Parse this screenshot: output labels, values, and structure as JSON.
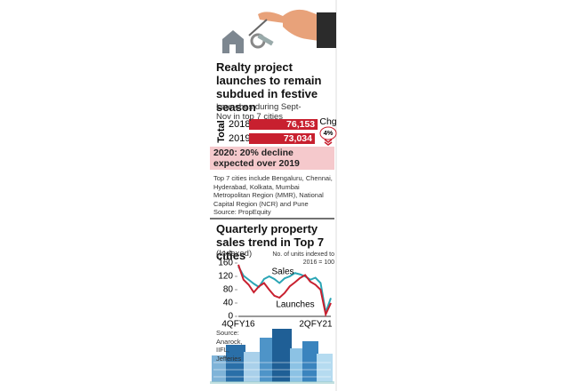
{
  "chart_data": [
    {
      "type": "bar",
      "title": "Realty project launches to remain subdued in festive season",
      "subtitle": "Launches during Sept-Nov in top 7 cities",
      "y_label": "Total",
      "categories": [
        "2018",
        "2019"
      ],
      "values": [
        76153,
        73034
      ],
      "value_labels": [
        "76,153",
        "73,034"
      ],
      "color": "#c8202f",
      "xlim": [
        0,
        77000
      ],
      "annotations": [
        "Chg",
        "4%",
        "2020: 20% decline expected over 2019",
        "Top 7 cities include Bengaluru, Chennai, Hyderabad, Kolkata, Mumbai Metropolitan Region (MMR), National Capital Region (NCR) and Pune"
      ],
      "source": "Source: PropEquity"
    },
    {
      "type": "line",
      "title": "Quarterly property sales trend in Top 7 cities",
      "y_label": "(Indexed)",
      "annotations": [
        "No. of units indexed to 2016 = 100"
      ],
      "categories": [
        "4QFY16",
        null,
        null,
        null,
        null,
        null,
        null,
        null,
        null,
        null,
        null,
        null,
        null,
        null,
        null,
        null,
        null,
        null,
        "2QFY21"
      ],
      "series": [
        {
          "name": "Sales",
          "color": "#2aa5b5",
          "values": [
            150,
            122,
            110,
            98,
            88,
            112,
            120,
            112,
            100,
            114,
            120,
            130,
            126,
            120,
            110,
            116,
            100,
            12,
            55
          ]
        },
        {
          "name": "Launches",
          "color": "#c8202f",
          "values": [
            155,
            110,
            95,
            72,
            90,
            100,
            80,
            62,
            56,
            70,
            90,
            102,
            115,
            124,
            104,
            95,
            80,
            6,
            40
          ]
        }
      ],
      "ylim": [
        0,
        160
      ],
      "yticks": [
        0,
        40,
        80,
        120,
        160
      ],
      "grid": false,
      "source": "Source: Anarock, IIFL, Jefferies"
    }
  ]
}
